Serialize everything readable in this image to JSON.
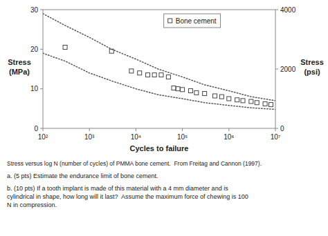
{
  "chart_data": {
    "type": "scatter",
    "log": "x",
    "grid": false,
    "legend": "upper right",
    "x_label": "Cycles to failure",
    "y_label": "Stress\n(MPa)",
    "y2_label": "Stress\n(psi)",
    "annotations": [
      "Stress versus log N (number of cycles) of PMMA bone cement.  From Freitag and Cannon (1997).",
      "a. (5 pts) Estimate the endurance limit of bone cement.",
      "b. (10 pts) If a tooth implant is made of this material with a 4 mm diameter and is\ncylindrical in shape, how long will it last?  Assume the maximum force of chewing is 100\nN in compression."
    ],
    "xlim": [
      100,
      10000000
    ],
    "xticks": [
      {
        "value": 100,
        "label": "10²"
      },
      {
        "value": 1000,
        "label": "10³"
      },
      {
        "value": 10000,
        "label": "10⁴"
      },
      {
        "value": 100000,
        "label": "10⁵"
      },
      {
        "value": 1000000,
        "label": "10⁶"
      },
      {
        "value": 10000000,
        "label": "10⁷"
      }
    ],
    "ylim": [
      0,
      30
    ],
    "yticks": [
      0,
      10,
      20,
      30
    ],
    "y2lim": [
      0,
      4000
    ],
    "y2ticks": [
      0,
      2000,
      4000
    ],
    "series": [
      {
        "type": "line",
        "line_style": "dotted",
        "color": "#555555",
        "x": [
          100,
          300,
          1000,
          3000,
          10000,
          30000,
          100000,
          300000,
          1000000,
          3000000,
          10000000
        ],
        "values": [
          29,
          26,
          23,
          20,
          17.5,
          15,
          13,
          11,
          9.5,
          8.0,
          7.0
        ]
      },
      {
        "type": "line",
        "line_style": "dotted",
        "color": "#555555",
        "x": [
          100,
          300,
          1000,
          3000,
          10000,
          30000,
          100000,
          300000,
          1000000,
          3000000,
          10000000
        ],
        "values": [
          19,
          17,
          14,
          12,
          10,
          8.5,
          7.5,
          6.5,
          5.8,
          5.2,
          4.8
        ]
      },
      {
        "name": "Bone cement",
        "type": "scatter",
        "marker": "square",
        "color": "#444444",
        "x": [
          300,
          3000,
          8000,
          12000,
          18000,
          25000,
          35000,
          50000,
          65000,
          80000,
          100000,
          150000,
          200000,
          300000,
          500000,
          700000,
          1000000,
          1500000,
          2000000,
          3000000,
          4000000,
          6000000,
          8000000
        ],
        "values": [
          20.5,
          19.5,
          14.5,
          14.0,
          13.5,
          13.5,
          13.5,
          13.0,
          10.2,
          10.0,
          9.8,
          9.5,
          9.0,
          8.8,
          8.2,
          8.0,
          7.5,
          7.2,
          7.0,
          6.8,
          6.5,
          6.2,
          6.0
        ]
      }
    ]
  }
}
